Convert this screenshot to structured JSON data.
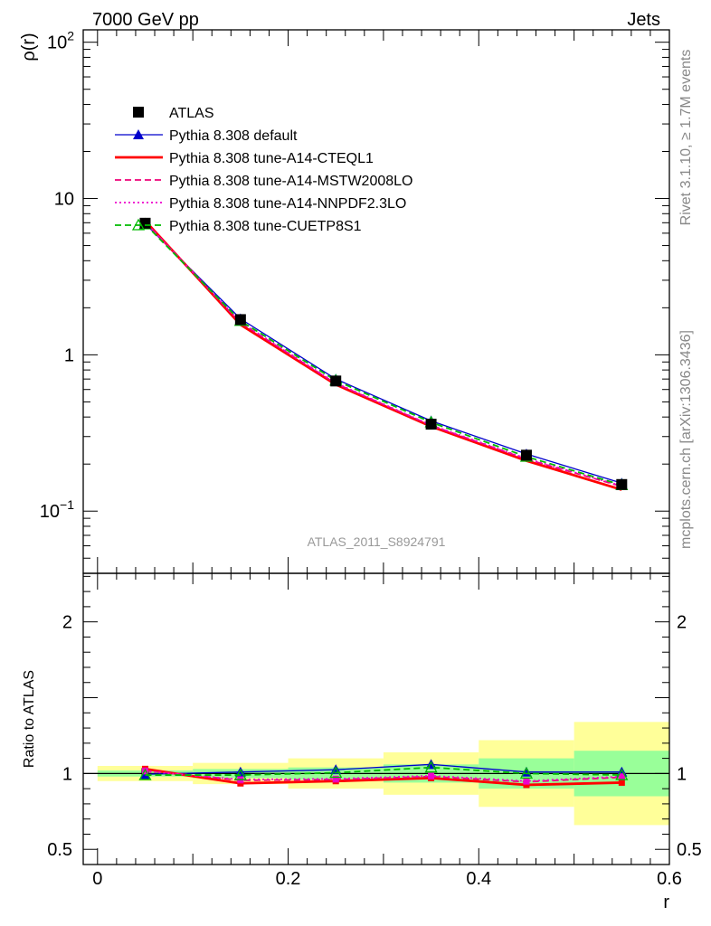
{
  "header": {
    "energy_label": "7000 GeV pp",
    "process_label": "Jets"
  },
  "side_labels": {
    "rivet": "Rivet 3.1.10, ≥ 1.7M events",
    "source": "mcplots.cern.ch [arXiv:1306.3436]"
  },
  "analysis_id": "ATLAS_2011_S8924791",
  "chart_data": [
    {
      "type": "line",
      "panel": "main",
      "ylabel": "ρ(r)",
      "yscale": "log",
      "ylim": [
        0.04,
        120
      ],
      "xlim": [
        -0.015,
        0.6
      ],
      "y_ticks": [
        {
          "value": 0.1,
          "base": "10",
          "exp": "−1"
        },
        {
          "value": 1,
          "base": "1",
          "exp": ""
        },
        {
          "value": 10,
          "base": "10",
          "exp": ""
        },
        {
          "value": 100,
          "base": "10",
          "exp": "2"
        }
      ],
      "legend_position": "top-left",
      "x": [
        0.05,
        0.15,
        0.25,
        0.35,
        0.45,
        0.55
      ],
      "series": [
        {
          "name": "ATLAS",
          "color": "#000000",
          "style": "marker",
          "marker": "square",
          "values": [
            6.95,
            1.68,
            0.68,
            0.36,
            0.228,
            0.148
          ]
        },
        {
          "name": "Pythia 8.308 default",
          "color": "#0000cc",
          "style": "solid-thin",
          "marker": "triangle",
          "values": [
            6.9,
            1.7,
            0.7,
            0.378,
            0.232,
            0.151
          ]
        },
        {
          "name": "Pythia 8.308 tune-A14-CTEQL1",
          "color": "#ff0000",
          "style": "solid-thick",
          "marker": "none",
          "values": [
            7.2,
            1.56,
            0.645,
            0.348,
            0.21,
            0.137
          ]
        },
        {
          "name": "Pythia 8.308 tune-A14-MSTW2008LO",
          "color": "#ee0077",
          "style": "dashed",
          "marker": "none",
          "values": [
            7.1,
            1.6,
            0.655,
            0.353,
            0.215,
            0.144
          ]
        },
        {
          "name": "Pythia 8.308 tune-A14-NNPDF2.3LO",
          "color": "#ee00cc",
          "style": "dotted",
          "marker": "none",
          "values": [
            7.05,
            1.62,
            0.66,
            0.355,
            0.217,
            0.145
          ]
        },
        {
          "name": "Pythia 8.308 tune-CUETP8S1",
          "color": "#00bb00",
          "style": "dashed",
          "marker": "open-triangle",
          "values": [
            6.85,
            1.65,
            0.685,
            0.37,
            0.223,
            0.147
          ]
        }
      ]
    },
    {
      "type": "line",
      "panel": "ratio",
      "xlabel": "r",
      "ylabel": "Ratio to ATLAS",
      "ylim": [
        0.4,
        2.32
      ],
      "xlim": [
        -0.015,
        0.6
      ],
      "x_ticks": [
        {
          "value": 0,
          "label": "0"
        },
        {
          "value": 0.2,
          "label": "0.2"
        },
        {
          "value": 0.4,
          "label": "0.4"
        },
        {
          "value": 0.6,
          "label": "0.6"
        }
      ],
      "y_ticks": [
        {
          "value": 0.5,
          "label": "0.5"
        },
        {
          "value": 1,
          "label": "1"
        },
        {
          "value": 2,
          "label": "2"
        }
      ],
      "x": [
        0.05,
        0.15,
        0.25,
        0.35,
        0.45,
        0.55
      ],
      "bins": [
        [
          0,
          0.1
        ],
        [
          0.1,
          0.2
        ],
        [
          0.2,
          0.3
        ],
        [
          0.3,
          0.4
        ],
        [
          0.4,
          0.5
        ],
        [
          0.5,
          0.6
        ]
      ],
      "band_total": [
        [
          0.95,
          1.05
        ],
        [
          0.93,
          1.07
        ],
        [
          0.9,
          1.1
        ],
        [
          0.86,
          1.14
        ],
        [
          0.78,
          1.22
        ],
        [
          0.66,
          1.34
        ]
      ],
      "band_stat": [
        [
          0.98,
          1.02
        ],
        [
          0.97,
          1.03
        ],
        [
          0.96,
          1.04
        ],
        [
          0.94,
          1.06
        ],
        [
          0.9,
          1.1
        ],
        [
          0.85,
          1.15
        ]
      ],
      "band_colors": {
        "total": "#ffff99",
        "stat": "#99ff99"
      },
      "series": [
        {
          "name": "Pythia 8.308 default",
          "color": "#0000cc",
          "style": "solid-thin",
          "marker": "triangle",
          "values": [
            0.995,
            1.01,
            1.025,
            1.06,
            1.01,
            1.01
          ]
        },
        {
          "name": "Pythia 8.308 tune-A14-CTEQL1",
          "color": "#ff0000",
          "style": "solid-thick",
          "marker": "square-small",
          "values": [
            1.03,
            0.935,
            0.95,
            0.97,
            0.925,
            0.94
          ]
        },
        {
          "name": "Pythia 8.308 tune-A14-MSTW2008LO",
          "color": "#ee0077",
          "style": "dashed",
          "marker": "square-small",
          "values": [
            1.02,
            0.955,
            0.96,
            0.98,
            0.945,
            0.975
          ]
        },
        {
          "name": "Pythia 8.308 tune-A14-NNPDF2.3LO",
          "color": "#ee00cc",
          "style": "dotted",
          "marker": "square-small",
          "values": [
            1.015,
            0.96,
            0.965,
            0.985,
            0.95,
            0.98
          ]
        },
        {
          "name": "Pythia 8.308 tune-CUETP8S1",
          "color": "#00bb00",
          "style": "dashed",
          "marker": "open-triangle",
          "values": [
            0.99,
            0.99,
            1.005,
            1.04,
            1.0,
            0.99
          ]
        }
      ]
    }
  ]
}
